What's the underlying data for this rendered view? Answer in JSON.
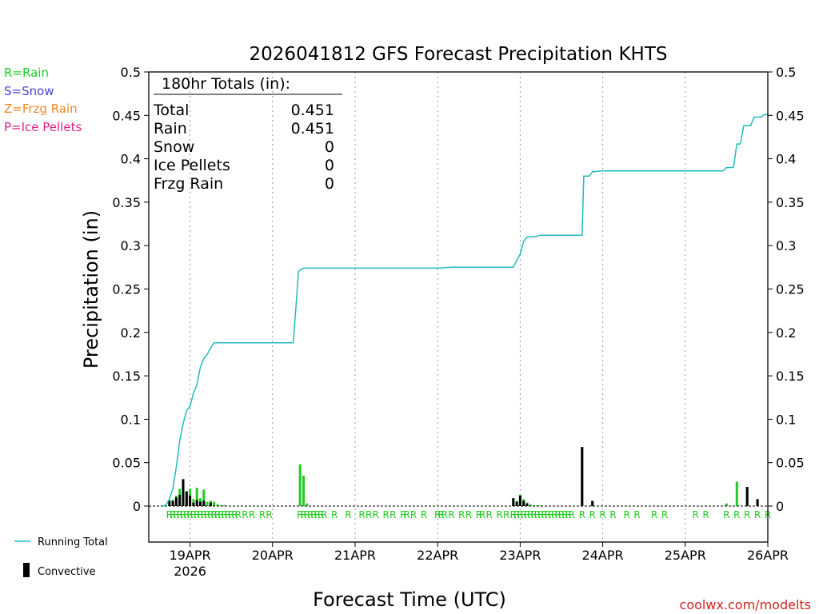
{
  "chart_data": {
    "type": "bar",
    "title": "2026041812 GFS Forecast Precipitation KHTS",
    "xlabel": "Forecast Time (UTC)",
    "ylabel": "Precipitation (in)",
    "ylim": [
      0,
      0.5
    ],
    "y_ticks": [
      "0",
      "0.05",
      "0.1",
      "0.15",
      "0.2",
      "0.25",
      "0.3",
      "0.35",
      "0.4",
      "0.45",
      "0.5"
    ],
    "x_start_hour": 18,
    "x_end_hour": 198,
    "x_ticks": [
      {
        "hour": 30,
        "label": "19APR",
        "sublabel": "2026"
      },
      {
        "hour": 54,
        "label": "20APR",
        "sublabel": ""
      },
      {
        "hour": 78,
        "label": "21APR",
        "sublabel": ""
      },
      {
        "hour": 102,
        "label": "22APR",
        "sublabel": ""
      },
      {
        "hour": 126,
        "label": "23APR",
        "sublabel": ""
      },
      {
        "hour": 150,
        "label": "24APR",
        "sublabel": ""
      },
      {
        "hour": 174,
        "label": "25APR",
        "sublabel": ""
      },
      {
        "hour": 198,
        "label": "26APR",
        "sublabel": ""
      }
    ],
    "legend_types": [
      {
        "text": "R=Rain",
        "color": "#22cc22"
      },
      {
        "text": "S=Snow",
        "color": "#4444dd"
      },
      {
        "text": "Z=Frzg Rain",
        "color": "#ee8822"
      },
      {
        "text": "P=Ice Pellets",
        "color": "#dd2288"
      }
    ],
    "legend_series": {
      "running_total": "Running Total",
      "convective": "Convective"
    },
    "totals": {
      "header": "180hr Totals (in):",
      "rows": [
        {
          "label": "Total",
          "value": "0.451"
        },
        {
          "label": "Rain",
          "value": "0.451"
        },
        {
          "label": "Snow",
          "value": "0"
        },
        {
          "label": "Ice Pellets",
          "value": "0"
        },
        {
          "label": "Frzg Rain",
          "value": "0"
        }
      ]
    },
    "running_total": [
      [
        22,
        0
      ],
      [
        23,
        0.001
      ],
      [
        24,
        0.008
      ],
      [
        25,
        0.02
      ],
      [
        26,
        0.045
      ],
      [
        27,
        0.075
      ],
      [
        28,
        0.095
      ],
      [
        29,
        0.11
      ],
      [
        30,
        0.115
      ],
      [
        31,
        0.13
      ],
      [
        32,
        0.14
      ],
      [
        33,
        0.16
      ],
      [
        34,
        0.17
      ],
      [
        35,
        0.175
      ],
      [
        36,
        0.182
      ],
      [
        37,
        0.188
      ],
      [
        40,
        0.188
      ],
      [
        48,
        0.188
      ],
      [
        52,
        0.188
      ],
      [
        60,
        0.188
      ],
      [
        61,
        0.24
      ],
      [
        61.5,
        0.27
      ],
      [
        62,
        0.272
      ],
      [
        63,
        0.274
      ],
      [
        65,
        0.274
      ],
      [
        72,
        0.274
      ],
      [
        90,
        0.274
      ],
      [
        102,
        0.274
      ],
      [
        106,
        0.275
      ],
      [
        114,
        0.275
      ],
      [
        124,
        0.275
      ],
      [
        125,
        0.283
      ],
      [
        126,
        0.29
      ],
      [
        127,
        0.305
      ],
      [
        128,
        0.31
      ],
      [
        130,
        0.31
      ],
      [
        132,
        0.312
      ],
      [
        144,
        0.312
      ],
      [
        144.5,
        0.38
      ],
      [
        146,
        0.38
      ],
      [
        147,
        0.385
      ],
      [
        150,
        0.386
      ],
      [
        158,
        0.386
      ],
      [
        168,
        0.386
      ],
      [
        180,
        0.386
      ],
      [
        185,
        0.386
      ],
      [
        186,
        0.39
      ],
      [
        188,
        0.39
      ],
      [
        189,
        0.417
      ],
      [
        190,
        0.417
      ],
      [
        191,
        0.438
      ],
      [
        193,
        0.438
      ],
      [
        194,
        0.448
      ],
      [
        196,
        0.448
      ],
      [
        197,
        0.451
      ],
      [
        198,
        0.451
      ]
    ],
    "bars_total": [
      [
        24,
        0.007
      ],
      [
        25,
        0.007
      ],
      [
        26,
        0.012
      ],
      [
        27,
        0.02
      ],
      [
        28,
        0.018
      ],
      [
        29,
        0.017
      ],
      [
        30,
        0.02
      ],
      [
        31,
        0.008
      ],
      [
        32,
        0.021
      ],
      [
        33,
        0.009
      ],
      [
        34,
        0.019
      ],
      [
        35,
        0.005
      ],
      [
        36,
        0.006
      ],
      [
        37,
        0.005
      ],
      [
        38,
        0.002
      ],
      [
        39,
        0.001
      ],
      [
        40,
        0.001
      ],
      [
        62,
        0.048
      ],
      [
        63,
        0.035
      ],
      [
        64,
        0.003
      ],
      [
        124,
        0.009
      ],
      [
        125,
        0.006
      ],
      [
        126,
        0.013
      ],
      [
        127,
        0.008
      ],
      [
        128,
        0.004
      ],
      [
        129,
        0.002
      ],
      [
        130,
        0.001
      ],
      [
        131,
        0.001
      ],
      [
        132,
        0.001
      ],
      [
        144,
        0.068
      ],
      [
        147,
        0.006
      ],
      [
        186,
        0.003
      ],
      [
        189,
        0.028
      ],
      [
        192,
        0.022
      ],
      [
        195,
        0.008
      ]
    ],
    "bars_convective": [
      [
        24,
        0.006
      ],
      [
        25,
        0.006
      ],
      [
        26,
        0.01
      ],
      [
        27,
        0.013
      ],
      [
        28,
        0.031
      ],
      [
        29,
        0.017
      ],
      [
        30,
        0.012
      ],
      [
        31,
        0.004
      ],
      [
        32,
        0.007
      ],
      [
        33,
        0.005
      ],
      [
        34,
        0.006
      ],
      [
        36,
        0.004
      ],
      [
        124,
        0.009
      ],
      [
        125,
        0.005
      ],
      [
        126,
        0.012
      ],
      [
        127,
        0.006
      ],
      [
        128,
        0.003
      ],
      [
        144,
        0.068
      ],
      [
        147,
        0.006
      ],
      [
        192,
        0.022
      ],
      [
        195,
        0.008
      ]
    ],
    "r_marks": [
      24,
      25,
      26,
      27,
      28,
      29,
      30,
      31,
      32,
      33,
      34,
      35,
      36,
      37,
      38,
      39,
      40,
      41,
      42,
      43,
      44,
      46,
      48,
      51,
      53,
      62,
      63,
      64,
      65,
      66,
      67,
      68,
      69,
      72,
      76,
      80,
      82,
      84,
      87,
      89,
      92,
      93,
      95,
      98,
      102,
      103,
      104,
      106,
      109,
      111,
      114,
      115,
      117,
      120,
      122,
      124,
      125,
      126,
      127,
      128,
      129,
      130,
      131,
      132,
      133,
      134,
      135,
      136,
      137,
      138,
      139,
      140,
      141,
      144,
      147,
      150,
      153,
      157,
      160,
      165,
      168,
      177,
      180,
      186,
      189,
      192,
      195,
      198
    ],
    "credit": "coolwx.com/modelts"
  }
}
